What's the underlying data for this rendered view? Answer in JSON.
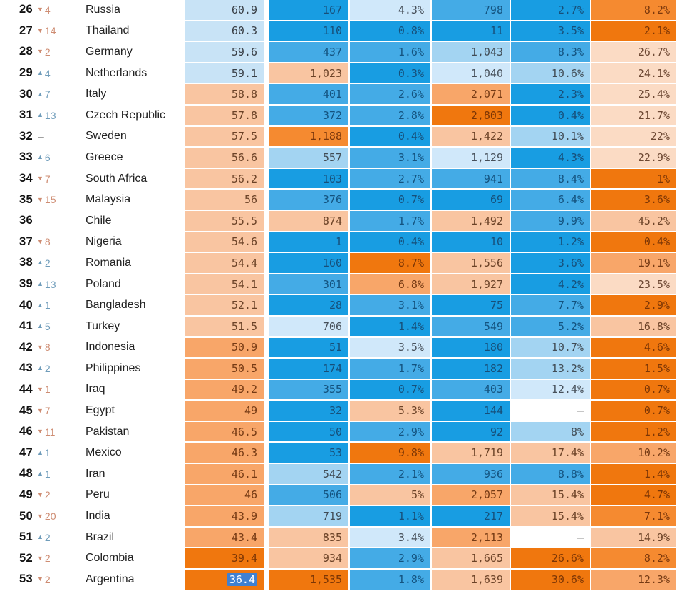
{
  "palette": {
    "B1": {
      "bg": "#189de2",
      "fg": "#174f79"
    },
    "B2": {
      "bg": "#44abe6",
      "fg": "#14537f"
    },
    "B3": {
      "bg": "#a3d4f2",
      "fg": "#414c55"
    },
    "B4": {
      "bg": "#d0e8fa",
      "fg": "#47505a"
    },
    "SB": {
      "bg": "#c8e3f6",
      "fg": "#393f46"
    },
    "W": {
      "bg": "#ffffff",
      "fg": "#8d8d8d"
    },
    "O4": {
      "bg": "#fbdbc4",
      "fg": "#6d4833"
    },
    "O3": {
      "bg": "#f9c5a1",
      "fg": "#6b4227"
    },
    "O2": {
      "bg": "#f8a669",
      "fg": "#753a14"
    },
    "O1": {
      "bg": "#f58a30",
      "fg": "#7a370c"
    },
    "O0": {
      "bg": "#f0770e",
      "fg": "#7b3505"
    }
  },
  "change_styles": {
    "down": "#ce8c72",
    "up": "#6f9cba",
    "none": "#9a9a9a"
  },
  "change_glyphs": {
    "down": "▼",
    "up": "▲",
    "none": ""
  },
  "selection": {
    "bg": "#3f80d1",
    "fg": "#ffffff"
  },
  "chart_data": {
    "type": "table",
    "rows": [
      {
        "rank": "26",
        "change": {
          "dir": "down",
          "value": "4"
        },
        "country": "Russia",
        "cells": [
          [
            "60.9",
            "SB"
          ],
          [
            "167",
            "B1"
          ],
          [
            "4.3%",
            "B4"
          ],
          [
            "798",
            "B2"
          ],
          [
            "2.7%",
            "B1"
          ],
          [
            "8.2%",
            "O1"
          ]
        ]
      },
      {
        "rank": "27",
        "change": {
          "dir": "down",
          "value": "14"
        },
        "country": "Thailand",
        "cells": [
          [
            "60.3",
            "SB"
          ],
          [
            "110",
            "B1"
          ],
          [
            "0.8%",
            "B1"
          ],
          [
            "11",
            "B1"
          ],
          [
            "3.5%",
            "B1"
          ],
          [
            "2.1%",
            "O0"
          ]
        ]
      },
      {
        "rank": "28",
        "change": {
          "dir": "down",
          "value": "2"
        },
        "country": "Germany",
        "cells": [
          [
            "59.6",
            "SB"
          ],
          [
            "437",
            "B2"
          ],
          [
            "1.6%",
            "B2"
          ],
          [
            "1,043",
            "B3"
          ],
          [
            "8.3%",
            "B2"
          ],
          [
            "26.7%",
            "O4"
          ]
        ]
      },
      {
        "rank": "29",
        "change": {
          "dir": "up",
          "value": "4"
        },
        "country": "Netherlands",
        "cells": [
          [
            "59.1",
            "SB"
          ],
          [
            "1,023",
            "O3"
          ],
          [
            "0.3%",
            "B1"
          ],
          [
            "1,040",
            "B4"
          ],
          [
            "10.6%",
            "B3"
          ],
          [
            "24.1%",
            "O4"
          ]
        ]
      },
      {
        "rank": "30",
        "change": {
          "dir": "up",
          "value": "7"
        },
        "country": "Italy",
        "cells": [
          [
            "58.8",
            "O3"
          ],
          [
            "401",
            "B2"
          ],
          [
            "2.6%",
            "B2"
          ],
          [
            "2,071",
            "O2"
          ],
          [
            "2.3%",
            "B1"
          ],
          [
            "25.4%",
            "O4"
          ]
        ]
      },
      {
        "rank": "31",
        "change": {
          "dir": "up",
          "value": "13"
        },
        "country": "Czech Republic",
        "cells": [
          [
            "57.8",
            "O3"
          ],
          [
            "372",
            "B2"
          ],
          [
            "2.8%",
            "B2"
          ],
          [
            "2,803",
            "O0"
          ],
          [
            "0.4%",
            "B1"
          ],
          [
            "21.7%",
            "O4"
          ]
        ]
      },
      {
        "rank": "32",
        "change": {
          "dir": "none",
          "value": "–"
        },
        "country": "Sweden",
        "cells": [
          [
            "57.5",
            "O3"
          ],
          [
            "1,188",
            "O1"
          ],
          [
            "0.4%",
            "B1"
          ],
          [
            "1,422",
            "O3"
          ],
          [
            "10.1%",
            "B3"
          ],
          [
            "22%",
            "O4"
          ]
        ]
      },
      {
        "rank": "33",
        "change": {
          "dir": "up",
          "value": "6"
        },
        "country": "Greece",
        "cells": [
          [
            "56.6",
            "O3"
          ],
          [
            "557",
            "B3"
          ],
          [
            "3.1%",
            "B2"
          ],
          [
            "1,129",
            "B4"
          ],
          [
            "4.3%",
            "B1"
          ],
          [
            "22.9%",
            "O4"
          ]
        ]
      },
      {
        "rank": "34",
        "change": {
          "dir": "down",
          "value": "7"
        },
        "country": "South Africa",
        "cells": [
          [
            "56.2",
            "O3"
          ],
          [
            "103",
            "B1"
          ],
          [
            "2.7%",
            "B2"
          ],
          [
            "941",
            "B2"
          ],
          [
            "8.4%",
            "B2"
          ],
          [
            "1%",
            "O0"
          ]
        ]
      },
      {
        "rank": "35",
        "change": {
          "dir": "down",
          "value": "15"
        },
        "country": "Malaysia",
        "cells": [
          [
            "56",
            "O3"
          ],
          [
            "376",
            "B2"
          ],
          [
            "0.7%",
            "B1"
          ],
          [
            "69",
            "B1"
          ],
          [
            "6.4%",
            "B2"
          ],
          [
            "3.6%",
            "O0"
          ]
        ]
      },
      {
        "rank": "36",
        "change": {
          "dir": "none",
          "value": "–"
        },
        "country": "Chile",
        "cells": [
          [
            "55.5",
            "O3"
          ],
          [
            "874",
            "O3"
          ],
          [
            "1.7%",
            "B2"
          ],
          [
            "1,492",
            "O3"
          ],
          [
            "9.9%",
            "B2"
          ],
          [
            "45.2%",
            "O3"
          ]
        ]
      },
      {
        "rank": "37",
        "change": {
          "dir": "down",
          "value": "8"
        },
        "country": "Nigeria",
        "cells": [
          [
            "54.6",
            "O3"
          ],
          [
            "1",
            "B1"
          ],
          [
            "0.4%",
            "B1"
          ],
          [
            "10",
            "B1"
          ],
          [
            "1.2%",
            "B1"
          ],
          [
            "0.4%",
            "O0"
          ]
        ]
      },
      {
        "rank": "38",
        "change": {
          "dir": "up",
          "value": "2"
        },
        "country": "Romania",
        "cells": [
          [
            "54.4",
            "O3"
          ],
          [
            "160",
            "B1"
          ],
          [
            "8.7%",
            "O0"
          ],
          [
            "1,556",
            "O3"
          ],
          [
            "3.6%",
            "B1"
          ],
          [
            "19.1%",
            "O2"
          ]
        ]
      },
      {
        "rank": "39",
        "change": {
          "dir": "up",
          "value": "13"
        },
        "country": "Poland",
        "cells": [
          [
            "54.1",
            "O3"
          ],
          [
            "301",
            "B2"
          ],
          [
            "6.8%",
            "O2"
          ],
          [
            "1,927",
            "O3"
          ],
          [
            "4.2%",
            "B1"
          ],
          [
            "23.5%",
            "O4"
          ]
        ]
      },
      {
        "rank": "40",
        "change": {
          "dir": "up",
          "value": "1"
        },
        "country": "Bangladesh",
        "cells": [
          [
            "52.1",
            "O3"
          ],
          [
            "28",
            "B1"
          ],
          [
            "3.1%",
            "B2"
          ],
          [
            "75",
            "B1"
          ],
          [
            "7.7%",
            "B2"
          ],
          [
            "2.9%",
            "O0"
          ]
        ]
      },
      {
        "rank": "41",
        "change": {
          "dir": "up",
          "value": "5"
        },
        "country": "Turkey",
        "cells": [
          [
            "51.5",
            "O3"
          ],
          [
            "706",
            "B4"
          ],
          [
            "1.4%",
            "B1"
          ],
          [
            "549",
            "B2"
          ],
          [
            "5.2%",
            "B2"
          ],
          [
            "16.8%",
            "O3"
          ]
        ]
      },
      {
        "rank": "42",
        "change": {
          "dir": "down",
          "value": "8"
        },
        "country": "Indonesia",
        "cells": [
          [
            "50.9",
            "O2"
          ],
          [
            "51",
            "B1"
          ],
          [
            "3.5%",
            "B4"
          ],
          [
            "180",
            "B1"
          ],
          [
            "10.7%",
            "B3"
          ],
          [
            "4.6%",
            "O0"
          ]
        ]
      },
      {
        "rank": "43",
        "change": {
          "dir": "up",
          "value": "2"
        },
        "country": "Philippines",
        "cells": [
          [
            "50.5",
            "O2"
          ],
          [
            "174",
            "B1"
          ],
          [
            "1.7%",
            "B2"
          ],
          [
            "182",
            "B1"
          ],
          [
            "13.2%",
            "B3"
          ],
          [
            "1.5%",
            "O0"
          ]
        ]
      },
      {
        "rank": "44",
        "change": {
          "dir": "down",
          "value": "1"
        },
        "country": "Iraq",
        "cells": [
          [
            "49.2",
            "O2"
          ],
          [
            "355",
            "B2"
          ],
          [
            "0.7%",
            "B1"
          ],
          [
            "403",
            "B2"
          ],
          [
            "12.4%",
            "B4"
          ],
          [
            "0.7%",
            "O0"
          ]
        ]
      },
      {
        "rank": "45",
        "change": {
          "dir": "down",
          "value": "7"
        },
        "country": "Egypt",
        "cells": [
          [
            "49",
            "O2"
          ],
          [
            "32",
            "B1"
          ],
          [
            "5.3%",
            "O3"
          ],
          [
            "144",
            "B1"
          ],
          [
            "–",
            "W"
          ],
          [
            "0.7%",
            "O0"
          ]
        ]
      },
      {
        "rank": "46",
        "change": {
          "dir": "down",
          "value": "11"
        },
        "country": "Pakistan",
        "cells": [
          [
            "46.5",
            "O2"
          ],
          [
            "50",
            "B1"
          ],
          [
            "2.9%",
            "B2"
          ],
          [
            "92",
            "B1"
          ],
          [
            "8%",
            "B3"
          ],
          [
            "1.2%",
            "O0"
          ]
        ]
      },
      {
        "rank": "47",
        "change": {
          "dir": "up",
          "value": "1"
        },
        "country": "Mexico",
        "cells": [
          [
            "46.3",
            "O2"
          ],
          [
            "53",
            "B1"
          ],
          [
            "9.8%",
            "O0"
          ],
          [
            "1,719",
            "O3"
          ],
          [
            "17.4%",
            "O3"
          ],
          [
            "10.2%",
            "O2"
          ]
        ]
      },
      {
        "rank": "48",
        "change": {
          "dir": "up",
          "value": "1"
        },
        "country": "Iran",
        "cells": [
          [
            "46.1",
            "O2"
          ],
          [
            "542",
            "B3"
          ],
          [
            "2.1%",
            "B2"
          ],
          [
            "936",
            "B2"
          ],
          [
            "8.8%",
            "B2"
          ],
          [
            "1.4%",
            "O0"
          ]
        ]
      },
      {
        "rank": "49",
        "change": {
          "dir": "down",
          "value": "2"
        },
        "country": "Peru",
        "cells": [
          [
            "46",
            "O2"
          ],
          [
            "506",
            "B2"
          ],
          [
            "5%",
            "O3"
          ],
          [
            "2,057",
            "O2"
          ],
          [
            "15.4%",
            "O3"
          ],
          [
            "4.7%",
            "O0"
          ]
        ]
      },
      {
        "rank": "50",
        "change": {
          "dir": "down",
          "value": "20"
        },
        "country": "India",
        "cells": [
          [
            "43.9",
            "O2"
          ],
          [
            "719",
            "B3"
          ],
          [
            "1.1%",
            "B1"
          ],
          [
            "217",
            "B1"
          ],
          [
            "15.4%",
            "O3"
          ],
          [
            "7.1%",
            "O1"
          ]
        ]
      },
      {
        "rank": "51",
        "change": {
          "dir": "up",
          "value": "2"
        },
        "country": "Brazil",
        "cells": [
          [
            "43.4",
            "O2"
          ],
          [
            "835",
            "O3"
          ],
          [
            "3.4%",
            "B4"
          ],
          [
            "2,113",
            "O2"
          ],
          [
            "–",
            "W"
          ],
          [
            "14.9%",
            "O3"
          ]
        ]
      },
      {
        "rank": "52",
        "change": {
          "dir": "down",
          "value": "2"
        },
        "country": "Colombia",
        "cells": [
          [
            "39.4",
            "O0"
          ],
          [
            "934",
            "O3"
          ],
          [
            "2.9%",
            "B2"
          ],
          [
            "1,665",
            "O3"
          ],
          [
            "26.6%",
            "O0"
          ],
          [
            "8.2%",
            "O1"
          ]
        ]
      },
      {
        "rank": "53",
        "change": {
          "dir": "down",
          "value": "2"
        },
        "country": "Argentina",
        "cells": [
          [
            "36.4",
            "O0",
            "sel"
          ],
          [
            "1,535",
            "O0"
          ],
          [
            "1.8%",
            "B2"
          ],
          [
            "1,639",
            "O3"
          ],
          [
            "30.6%",
            "O0"
          ],
          [
            "12.3%",
            "O2"
          ]
        ]
      }
    ]
  }
}
